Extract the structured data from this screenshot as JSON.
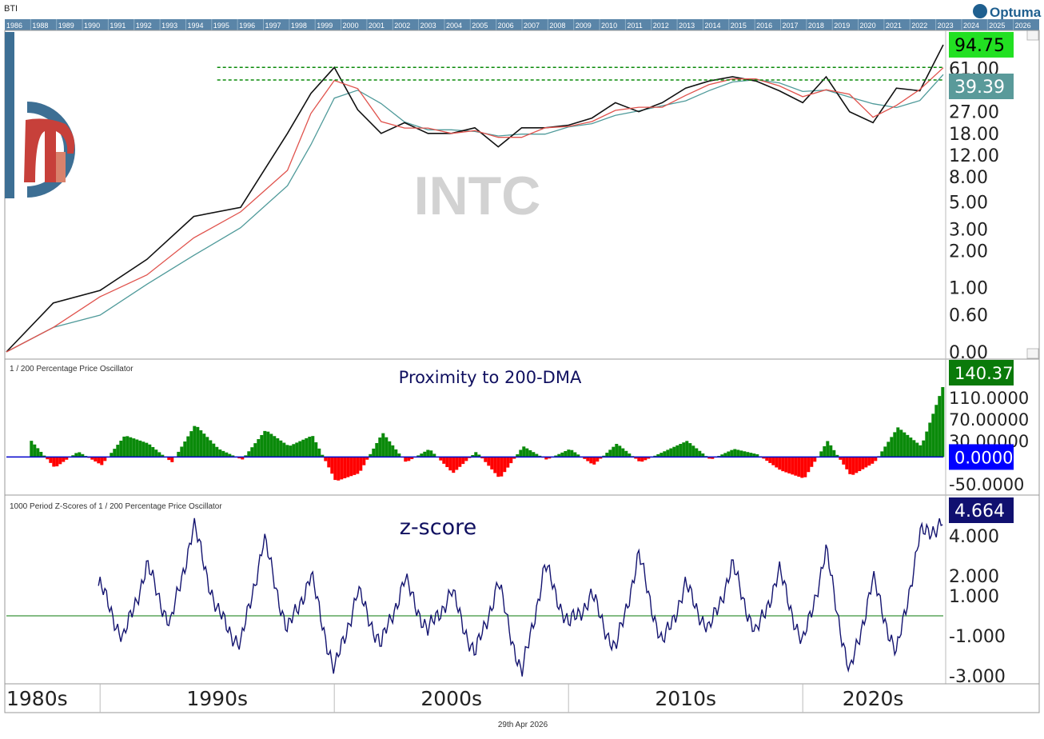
{
  "header": {
    "symbol": "BTI",
    "brand": "Optuma"
  },
  "year_strip": [
    "1986",
    "1988",
    "1989",
    "1990",
    "1991",
    "1992",
    "1993",
    "1994",
    "1995",
    "1996",
    "1997",
    "1998",
    "1999",
    "2000",
    "2001",
    "2002",
    "2003",
    "2004",
    "2005",
    "2006",
    "2007",
    "2008",
    "2009",
    "2010",
    "2011",
    "2012",
    "2013",
    "2014",
    "2015",
    "2016",
    "2017",
    "2018",
    "2019",
    "2020",
    "2021",
    "2022",
    "2023",
    "2024",
    "2025",
    "2026"
  ],
  "watermark": "INTC",
  "colors": {
    "price": "#111111",
    "ma_fast": "#e0524c",
    "ma_slow": "#4f9a9a",
    "osc_pos": "#0a8a0a",
    "osc_neg": "#ff0000",
    "zscore": "#141470",
    "badge_green": "#22e022",
    "badge_teal": "#5a9a9a",
    "badge_darkgreen": "#0a7a0a",
    "badge_blue": "#0000ff",
    "badge_navy": "#101070"
  },
  "chart_data": [
    {
      "type": "line",
      "panel": "price",
      "scale": "log",
      "y_ticks": [
        "0.00",
        "0.60",
        "1.00",
        "2.00",
        "3.00",
        "5.00",
        "8.00",
        "12.00",
        "18.00",
        "27.00",
        "61.00"
      ],
      "x": [
        "1986",
        "1988",
        "1990",
        "1992",
        "1994",
        "1996",
        "1998",
        "1999",
        "2000",
        "2001",
        "2002",
        "2003",
        "2004",
        "2005",
        "2006",
        "2007",
        "2008",
        "2009",
        "2010",
        "2011",
        "2012",
        "2013",
        "2014",
        "2015",
        "2016",
        "2017",
        "2018",
        "2019",
        "2020",
        "2021",
        "2022",
        "2023",
        "2024",
        "2025",
        "2026"
      ],
      "series": [
        {
          "values": [
            0.3,
            0.75,
            0.95,
            1.7,
            3.8,
            4.5,
            18,
            38,
            62,
            28,
            18,
            22,
            18,
            18,
            20,
            14,
            20,
            20,
            21,
            24,
            32,
            27,
            32,
            42,
            48,
            52,
            48,
            40,
            32,
            52,
            27,
            22,
            42,
            40,
            94.75
          ]
        }
      ],
      "horizontal_lines": [
        62,
        49
      ],
      "badges": [
        {
          "label": "94.75",
          "color": "badge_green"
        },
        {
          "label": "39.39",
          "color": "badge_teal"
        }
      ]
    },
    {
      "type": "area",
      "panel": "oscillator",
      "title": "1 / 200 Percentage Price Oscillator",
      "annotation": "Proximity to 200-DMA",
      "y_ticks": [
        "-50.0000",
        "30.00000",
        "70.00000",
        "110.0000"
      ],
      "ylim": [
        -60,
        150
      ],
      "x": [
        "1987",
        "1988",
        "1989",
        "1990",
        "1991",
        "1992",
        "1993",
        "1994",
        "1995",
        "1996",
        "1997",
        "1998",
        "1999",
        "2000",
        "2001",
        "2002",
        "2003",
        "2004",
        "2005",
        "2006",
        "2007",
        "2008",
        "2009",
        "2010",
        "2011",
        "2012",
        "2013",
        "2014",
        "2015",
        "2016",
        "2017",
        "2018",
        "2019",
        "2020",
        "2021",
        "2022",
        "2023",
        "2024",
        "2025",
        "2026"
      ],
      "values": [
        30,
        -20,
        10,
        -15,
        40,
        25,
        -10,
        60,
        15,
        -5,
        50,
        20,
        40,
        -45,
        -30,
        45,
        -10,
        15,
        -30,
        10,
        -40,
        20,
        -5,
        15,
        -15,
        25,
        -10,
        10,
        30,
        -5,
        15,
        5,
        -25,
        -40,
        30,
        -35,
        -10,
        55,
        20,
        140.379
      ],
      "badges": [
        {
          "label": "140.379",
          "color": "badge_darkgreen"
        },
        {
          "label": "0.00000",
          "color": "badge_blue"
        }
      ]
    },
    {
      "type": "line",
      "panel": "zscore",
      "title": "1000 Period Z-Scores of 1 / 200 Percentage Price Oscillator",
      "annotation": "z-score",
      "y_ticks": [
        "-3.000",
        "-1.000",
        "1.000",
        "2.000",
        "4.000"
      ],
      "ylim": [
        -3.2,
        5.2
      ],
      "x": [
        "1990",
        "1991",
        "1992",
        "1993",
        "1994",
        "1995",
        "1996",
        "1997",
        "1998",
        "1999",
        "2000",
        "2001",
        "2002",
        "2003",
        "2004",
        "2005",
        "2006",
        "2007",
        "2008",
        "2009",
        "2010",
        "2011",
        "2012",
        "2013",
        "2014",
        "2015",
        "2016",
        "2017",
        "2018",
        "2019",
        "2020",
        "2021",
        "2022",
        "2023",
        "2024",
        "2025",
        "2026"
      ],
      "values": [
        1.5,
        -1.2,
        2.5,
        -0.5,
        4.5,
        0.2,
        -1.5,
        3.8,
        -0.8,
        2.0,
        -2.8,
        1.2,
        -1.5,
        1.8,
        -0.8,
        1.2,
        -2.0,
        1.6,
        -3.0,
        2.5,
        -0.5,
        1.0,
        -1.8,
        3.0,
        -1.5,
        1.5,
        -0.8,
        2.5,
        -1.0,
        2.2,
        -1.5,
        3.2,
        -3.0,
        1.8,
        -2.0,
        4.0,
        4.664
      ],
      "zero_line": 0,
      "badges": [
        {
          "label": "4.664",
          "color": "badge_navy"
        }
      ]
    }
  ],
  "decades": [
    "1980s",
    "1990s",
    "2000s",
    "2010s",
    "2020s"
  ],
  "footer_date": "29th Apr 2026"
}
